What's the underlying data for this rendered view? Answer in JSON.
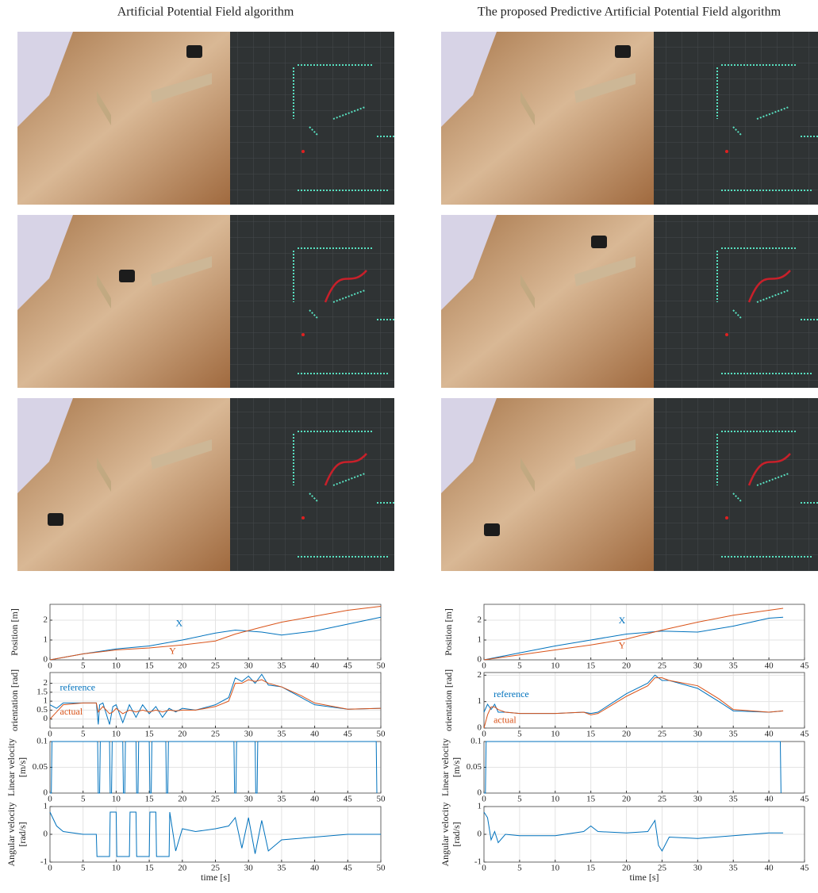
{
  "columns": [
    {
      "title": "Artificial Potential Field algorithm"
    },
    {
      "title": "The proposed Predictive Artificial Potential Field algorithm"
    }
  ],
  "chart_data": [
    {
      "type": "line",
      "ylabel": "Position [m]",
      "xlim": [
        0,
        50
      ],
      "xticks": [
        0,
        5,
        10,
        15,
        20,
        25,
        30,
        35,
        40,
        45,
        50
      ],
      "ylim": [
        0,
        2.8
      ],
      "yticks": [
        0,
        1,
        2
      ],
      "grid": true,
      "x": [
        0,
        5,
        10,
        15,
        20,
        25,
        28,
        32,
        35,
        40,
        45,
        50
      ],
      "series": [
        {
          "name": "X",
          "color": "#0072bd",
          "values": [
            0,
            0.3,
            0.55,
            0.7,
            1.0,
            1.35,
            1.5,
            1.4,
            1.25,
            1.45,
            1.8,
            2.15
          ]
        },
        {
          "name": "Y",
          "color": "#d95319",
          "values": [
            0,
            0.3,
            0.5,
            0.6,
            0.75,
            0.95,
            1.3,
            1.65,
            1.9,
            2.2,
            2.5,
            2.7
          ]
        }
      ]
    },
    {
      "type": "line",
      "ylabel": "orientation [rad]",
      "xlim": [
        0,
        50
      ],
      "xticks": [
        0,
        5,
        10,
        15,
        20,
        25,
        30,
        35,
        40,
        45,
        50
      ],
      "ylim": [
        -0.5,
        2.6
      ],
      "yticks": [
        0,
        0.5,
        1,
        1.5,
        2
      ],
      "grid": true,
      "x": [
        0,
        1,
        2,
        5,
        7,
        7.3,
        7.5,
        8,
        9,
        9.5,
        10,
        11,
        12,
        13,
        14,
        15,
        16,
        17,
        18,
        19,
        20,
        22,
        25,
        27,
        28,
        29,
        30,
        31,
        32,
        33,
        35,
        38,
        40,
        45,
        50
      ],
      "series": [
        {
          "name": "reference",
          "color": "#0072bd",
          "values": [
            0.8,
            0.6,
            0.9,
            0.9,
            0.9,
            -0.3,
            0.8,
            0.9,
            -0.3,
            0.7,
            0.8,
            -0.2,
            0.8,
            0.1,
            0.8,
            0.3,
            0.7,
            0.1,
            0.6,
            0.4,
            0.6,
            0.5,
            0.8,
            1.2,
            2.3,
            2.1,
            2.4,
            2.0,
            2.5,
            1.9,
            1.8,
            1.2,
            0.8,
            0.55,
            0.6
          ]
        },
        {
          "name": "actual",
          "color": "#d95319",
          "values": [
            0,
            0.4,
            0.8,
            0.9,
            0.9,
            0.4,
            0.5,
            0.7,
            0.3,
            0.4,
            0.6,
            0.3,
            0.5,
            0.4,
            0.5,
            0.4,
            0.5,
            0.4,
            0.5,
            0.45,
            0.5,
            0.5,
            0.7,
            1.0,
            2.0,
            2.0,
            2.2,
            2.1,
            2.2,
            2.0,
            1.8,
            1.3,
            0.9,
            0.55,
            0.6
          ]
        }
      ]
    },
    {
      "type": "line",
      "ylabel": [
        "Linear velocity",
        "[m/s]"
      ],
      "xlim": [
        0,
        50
      ],
      "xticks": [
        0,
        5,
        10,
        15,
        20,
        25,
        30,
        35,
        40,
        45,
        50
      ],
      "ylim": [
        0,
        0.1
      ],
      "yticks": [
        0,
        0.05,
        0.1
      ],
      "grid": true,
      "x": [
        0,
        0.2,
        0.3,
        7.2,
        7.3,
        7.5,
        7.6,
        9,
        9.1,
        9.3,
        9.4,
        11,
        11.1,
        11.3,
        11.4,
        13,
        13.1,
        13.3,
        13.4,
        15,
        15.1,
        15.3,
        15.4,
        17.5,
        17.6,
        17.8,
        17.9,
        27.8,
        27.9,
        28.1,
        28.2,
        31,
        31.1,
        31.3,
        31.4,
        49.3,
        49.4
      ],
      "series": [
        {
          "color": "#0072bd",
          "values": [
            0,
            0,
            0.1,
            0.1,
            0,
            0,
            0.1,
            0.1,
            0,
            0,
            0.1,
            0.1,
            0,
            0,
            0.1,
            0.1,
            0,
            0,
            0.1,
            0.1,
            0,
            0,
            0.1,
            0.1,
            0,
            0,
            0.1,
            0.1,
            0,
            0,
            0.1,
            0.1,
            0,
            0,
            0.1,
            0.1,
            0
          ]
        }
      ]
    },
    {
      "type": "line",
      "ylabel": [
        "Angular velocity",
        "[rad/s]"
      ],
      "xlabel": "time [s]",
      "xlim": [
        0,
        50
      ],
      "xticks": [
        0,
        5,
        10,
        15,
        20,
        25,
        30,
        35,
        40,
        45,
        50
      ],
      "ylim": [
        -1,
        1
      ],
      "yticks": [
        -1,
        0,
        1
      ],
      "grid": true,
      "x": [
        0,
        1,
        2,
        5,
        7,
        7.1,
        9,
        9.1,
        10,
        10.1,
        12,
        12.1,
        13,
        13.1,
        15,
        15.1,
        16,
        16.1,
        18,
        18.1,
        19,
        20,
        22,
        25,
        27,
        28,
        29,
        30,
        31,
        32,
        33,
        35,
        40,
        45,
        50
      ],
      "series": [
        {
          "color": "#0072bd",
          "values": [
            0.8,
            0.3,
            0.1,
            0,
            0,
            -0.8,
            -0.8,
            0.8,
            0.8,
            -0.8,
            -0.8,
            0.8,
            0.8,
            -0.8,
            -0.8,
            0.8,
            0.8,
            -0.8,
            -0.8,
            0.8,
            -0.6,
            0.2,
            0.1,
            0.2,
            0.3,
            0.6,
            -0.5,
            0.6,
            -0.7,
            0.5,
            -0.6,
            -0.2,
            -0.1,
            0,
            0
          ]
        }
      ]
    },
    {
      "type": "line",
      "ylabel": "Position [m]",
      "xlim": [
        0,
        45
      ],
      "xticks": [
        0,
        5,
        10,
        15,
        20,
        25,
        30,
        35,
        40,
        45
      ],
      "ylim": [
        0,
        2.8
      ],
      "yticks": [
        0,
        1,
        2
      ],
      "grid": true,
      "x": [
        0,
        5,
        10,
        15,
        20,
        25,
        30,
        35,
        40,
        42
      ],
      "series": [
        {
          "name": "X",
          "color": "#0072bd",
          "values": [
            0,
            0.35,
            0.7,
            1.0,
            1.3,
            1.45,
            1.4,
            1.7,
            2.1,
            2.15
          ]
        },
        {
          "name": "Y",
          "color": "#d95319",
          "values": [
            0,
            0.25,
            0.5,
            0.75,
            1.05,
            1.5,
            1.9,
            2.25,
            2.5,
            2.6
          ]
        }
      ]
    },
    {
      "type": "line",
      "ylabel": "orientation [rad]",
      "xlim": [
        0,
        45
      ],
      "xticks": [
        0,
        5,
        10,
        15,
        20,
        25,
        30,
        35,
        40,
        45
      ],
      "ylim": [
        0,
        2.1
      ],
      "yticks": [
        0,
        1,
        2
      ],
      "grid": true,
      "x": [
        0,
        0.5,
        1,
        1.5,
        2,
        3,
        5,
        10,
        14,
        15,
        16,
        20,
        23,
        24,
        25,
        26,
        30,
        33,
        35,
        40,
        42
      ],
      "series": [
        {
          "name": "reference",
          "color": "#0072bd",
          "values": [
            0.6,
            0.9,
            0.7,
            0.9,
            0.6,
            0.6,
            0.55,
            0.55,
            0.6,
            0.55,
            0.6,
            1.3,
            1.7,
            2.0,
            1.8,
            1.8,
            1.5,
            1.0,
            0.65,
            0.6,
            0.65
          ]
        },
        {
          "name": "actual",
          "color": "#d95319",
          "values": [
            0,
            0.5,
            0.8,
            0.8,
            0.7,
            0.6,
            0.55,
            0.55,
            0.6,
            0.5,
            0.55,
            1.2,
            1.6,
            1.9,
            1.9,
            1.8,
            1.6,
            1.1,
            0.7,
            0.6,
            0.65
          ]
        }
      ]
    },
    {
      "type": "line",
      "ylabel": [
        "Linear velocity",
        "[m/s]"
      ],
      "xlim": [
        0,
        45
      ],
      "xticks": [
        0,
        5,
        10,
        15,
        20,
        25,
        30,
        35,
        40,
        45
      ],
      "ylim": [
        0,
        0.1
      ],
      "yticks": [
        0,
        0.05,
        0.1
      ],
      "grid": true,
      "x": [
        0,
        0.2,
        0.3,
        41.6,
        41.7
      ],
      "series": [
        {
          "color": "#0072bd",
          "values": [
            0,
            0,
            0.1,
            0.1,
            0
          ]
        }
      ]
    },
    {
      "type": "line",
      "ylabel": [
        "Angular velocity",
        "[rad/s]"
      ],
      "xlabel": "time [s]",
      "xlim": [
        0,
        45
      ],
      "xticks": [
        0,
        5,
        10,
        15,
        20,
        25,
        30,
        35,
        40,
        45
      ],
      "ylim": [
        -1,
        1
      ],
      "yticks": [
        -1,
        0,
        1
      ],
      "grid": true,
      "x": [
        0,
        0.5,
        1,
        1.5,
        2,
        3,
        5,
        10,
        14,
        15,
        16,
        20,
        23,
        24,
        24.5,
        25,
        26,
        30,
        35,
        40,
        42
      ],
      "series": [
        {
          "color": "#0072bd",
          "values": [
            0.8,
            0.6,
            -0.2,
            0.1,
            -0.3,
            0,
            -0.05,
            -0.05,
            0.1,
            0.3,
            0.1,
            0.05,
            0.1,
            0.5,
            -0.4,
            -0.6,
            -0.1,
            -0.15,
            -0.05,
            0.05,
            0.05
          ]
        }
      ]
    }
  ]
}
